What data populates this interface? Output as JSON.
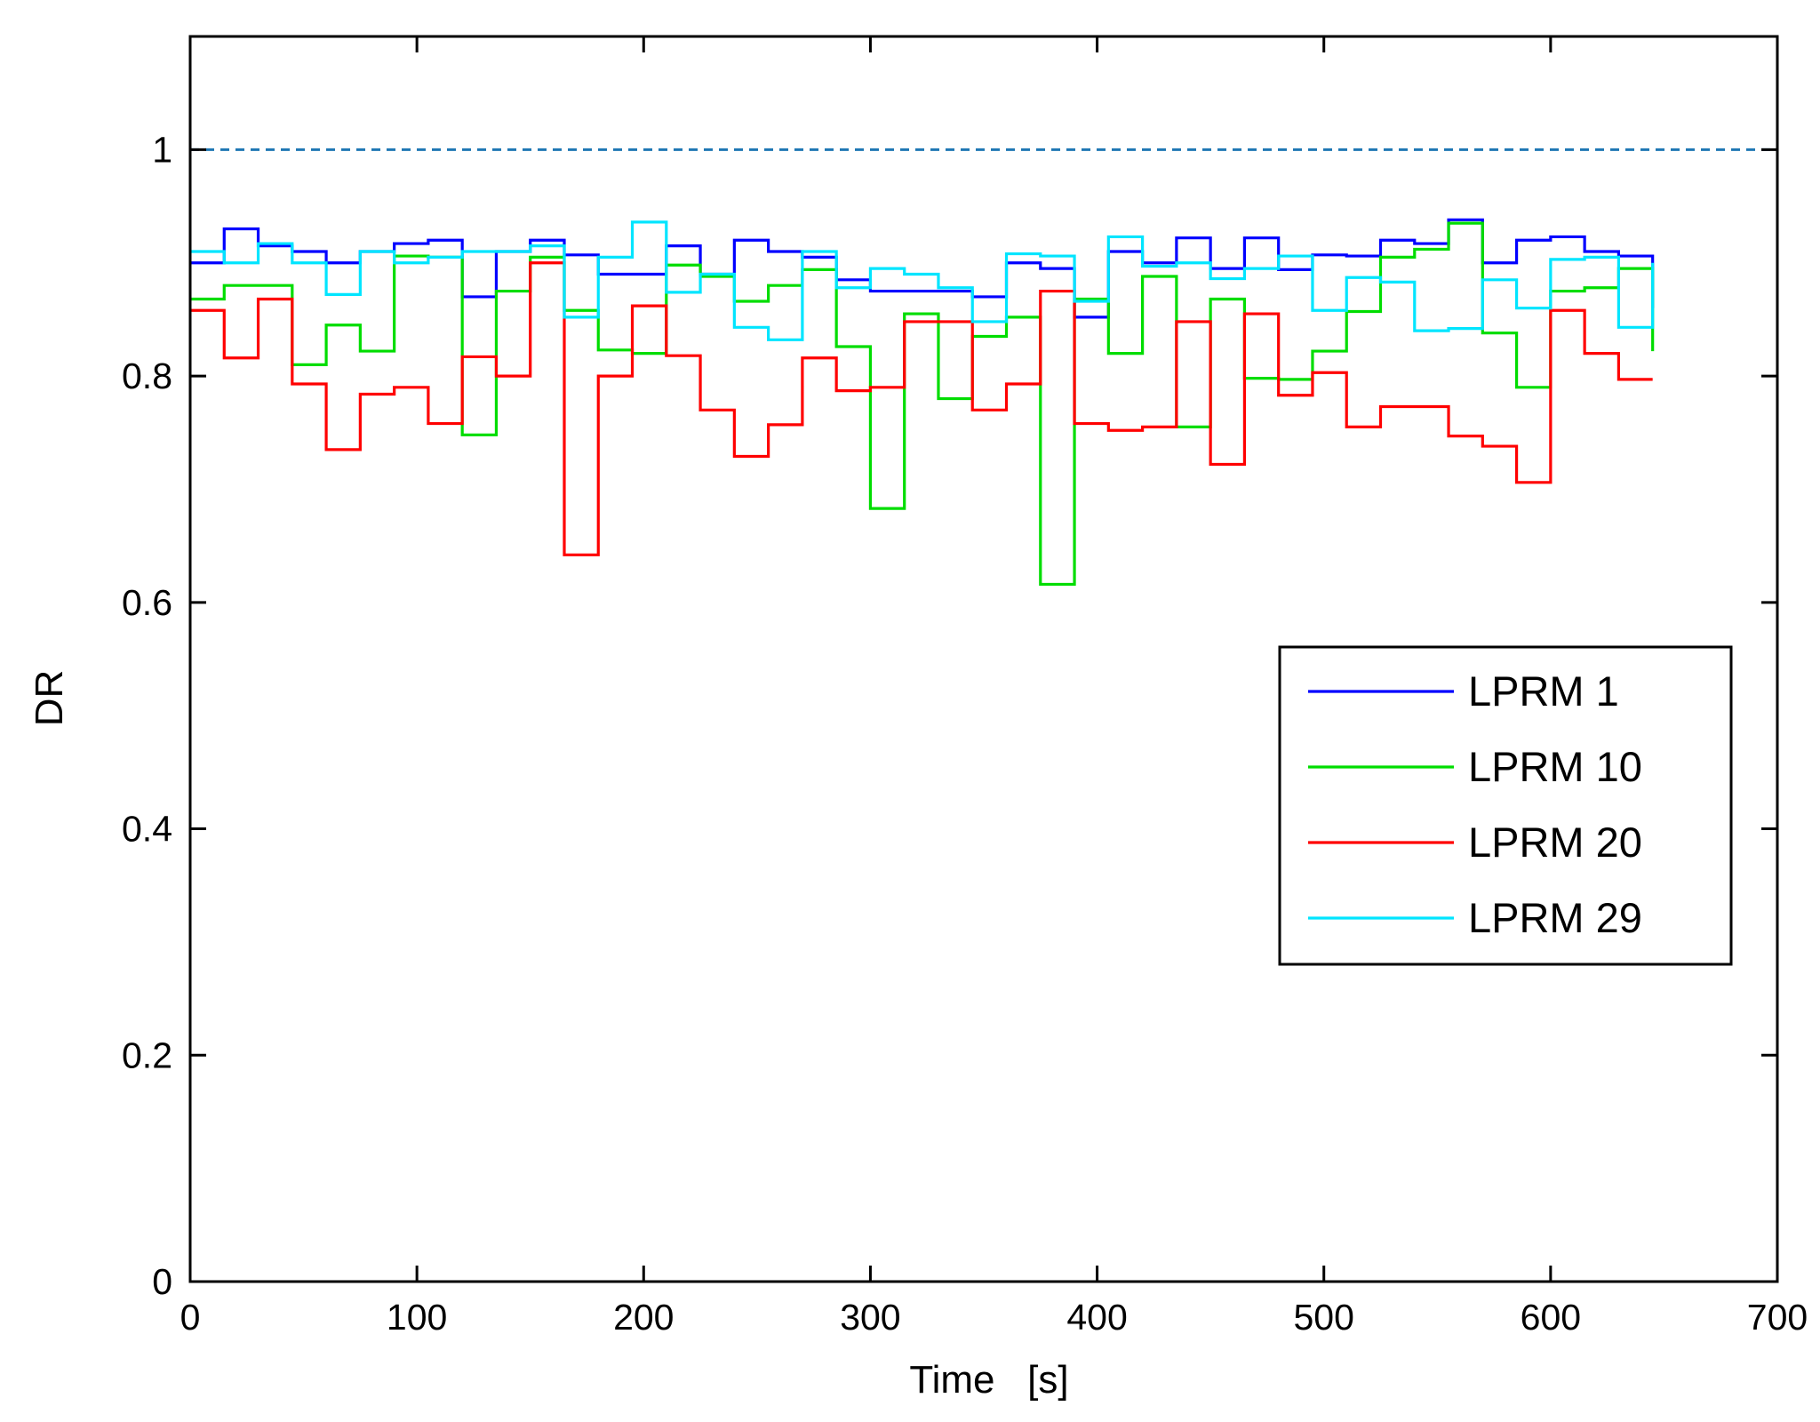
{
  "chart_data": {
    "type": "line",
    "step": true,
    "title": "",
    "xlabel": "Time   [s]",
    "ylabel": "DR",
    "xlim": [
      0,
      700
    ],
    "ylim": [
      0,
      1.1
    ],
    "xticks": [
      0,
      100,
      200,
      300,
      400,
      500,
      600,
      700
    ],
    "yticks": [
      0,
      0.2,
      0.4,
      0.6,
      0.8,
      1
    ],
    "xtick_labels": [
      "0",
      "100",
      "200",
      "300",
      "400",
      "500",
      "600",
      "700"
    ],
    "ytick_labels": [
      "0",
      "0.2",
      "0.4",
      "0.6",
      "0.8",
      "1"
    ],
    "grid": false,
    "legend_position": "center-right",
    "reference_line": {
      "y": 1.0,
      "style": "dashed",
      "color": "#1f77b4"
    },
    "series": [
      {
        "name": "LPRM 1",
        "color": "#0000ff",
        "x": [
          0,
          15,
          30,
          45,
          60,
          75,
          90,
          105,
          120,
          135,
          150,
          165,
          180,
          195,
          210,
          225,
          240,
          255,
          270,
          285,
          300,
          315,
          330,
          345,
          360,
          375,
          390,
          405,
          420,
          435,
          450,
          465,
          480,
          495,
          510,
          525,
          540,
          555,
          570,
          585,
          600,
          615,
          630,
          645
        ],
        "values": [
          0.9,
          0.93,
          0.915,
          0.91,
          0.9,
          0.91,
          0.917,
          0.92,
          0.87,
          0.91,
          0.92,
          0.907,
          0.89,
          0.89,
          0.915,
          0.89,
          0.92,
          0.91,
          0.905,
          0.885,
          0.875,
          0.875,
          0.875,
          0.87,
          0.9,
          0.895,
          0.852,
          0.91,
          0.9,
          0.922,
          0.895,
          0.922,
          0.894,
          0.907,
          0.906,
          0.92,
          0.917,
          0.938,
          0.9,
          0.92,
          0.923,
          0.91,
          0.906,
          0.86
        ]
      },
      {
        "name": "LPRM 10",
        "color": "#00dd00",
        "x": [
          0,
          15,
          30,
          45,
          60,
          75,
          90,
          105,
          120,
          135,
          150,
          165,
          180,
          195,
          210,
          225,
          240,
          255,
          270,
          285,
          300,
          315,
          330,
          345,
          360,
          375,
          390,
          405,
          420,
          435,
          450,
          465,
          480,
          495,
          510,
          525,
          540,
          555,
          570,
          585,
          600,
          615,
          630,
          645
        ],
        "values": [
          0.868,
          0.88,
          0.88,
          0.81,
          0.845,
          0.822,
          0.906,
          0.905,
          0.748,
          0.875,
          0.905,
          0.858,
          0.823,
          0.82,
          0.898,
          0.888,
          0.866,
          0.88,
          0.894,
          0.826,
          0.683,
          0.855,
          0.78,
          0.835,
          0.852,
          0.616,
          0.868,
          0.82,
          0.888,
          0.755,
          0.868,
          0.798,
          0.797,
          0.822,
          0.857,
          0.905,
          0.912,
          0.935,
          0.838,
          0.79,
          0.875,
          0.878,
          0.895,
          0.822
        ]
      },
      {
        "name": "LPRM 20",
        "color": "#ff0000",
        "x": [
          0,
          15,
          30,
          45,
          60,
          75,
          90,
          105,
          120,
          135,
          150,
          165,
          180,
          195,
          210,
          225,
          240,
          255,
          270,
          285,
          300,
          315,
          330,
          345,
          360,
          375,
          390,
          405,
          420,
          435,
          450,
          465,
          480,
          495,
          510,
          525,
          540,
          555,
          570,
          585,
          600,
          615,
          630,
          645
        ],
        "values": [
          0.858,
          0.816,
          0.868,
          0.793,
          0.735,
          0.784,
          0.79,
          0.758,
          0.817,
          0.8,
          0.9,
          0.642,
          0.8,
          0.862,
          0.818,
          0.77,
          0.729,
          0.757,
          0.816,
          0.787,
          0.79,
          0.848,
          0.848,
          0.77,
          0.793,
          0.875,
          0.758,
          0.752,
          0.755,
          0.848,
          0.722,
          0.855,
          0.783,
          0.803,
          0.755,
          0.773,
          0.773,
          0.747,
          0.738,
          0.706,
          0.858,
          0.82,
          0.797,
          0.797
        ]
      },
      {
        "name": "LPRM 29",
        "color": "#00e5ff",
        "x": [
          0,
          15,
          30,
          45,
          60,
          75,
          90,
          105,
          120,
          135,
          150,
          165,
          180,
          195,
          210,
          225,
          240,
          255,
          270,
          285,
          300,
          315,
          330,
          345,
          360,
          375,
          390,
          405,
          420,
          435,
          450,
          465,
          480,
          495,
          510,
          525,
          540,
          555,
          570,
          585,
          600,
          615,
          630,
          645
        ],
        "values": [
          0.91,
          0.9,
          0.917,
          0.9,
          0.872,
          0.91,
          0.9,
          0.905,
          0.91,
          0.91,
          0.915,
          0.852,
          0.905,
          0.936,
          0.874,
          0.89,
          0.843,
          0.832,
          0.91,
          0.878,
          0.895,
          0.89,
          0.878,
          0.848,
          0.908,
          0.906,
          0.866,
          0.923,
          0.897,
          0.9,
          0.886,
          0.895,
          0.906,
          0.858,
          0.887,
          0.883,
          0.84,
          0.842,
          0.885,
          0.86,
          0.903,
          0.905,
          0.843,
          0.9
        ]
      }
    ]
  }
}
